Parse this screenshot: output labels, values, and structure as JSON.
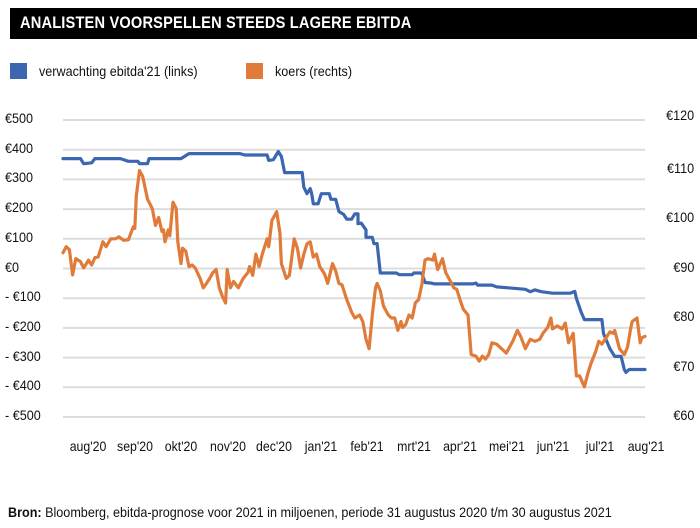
{
  "chart_data": {
    "type": "line",
    "title": "ANALISTEN VOORSPELLEN STEEDS LAGERE EBITDA",
    "source_label": "Bron:",
    "source_text": "Bloomberg, ebitda-prognose voor 2021 in miljoenen, periode 31 augustus 2020 t/m 30 augustus 2021",
    "x_unit": "days since 31 Aug 2020",
    "xlim": [
      0,
      365
    ],
    "x_tick_labels": [
      "aug'20",
      "sep'20",
      "okt'20",
      "nov'20",
      "dec'20",
      "jan'21",
      "feb'21",
      "mrt'21",
      "apr'21",
      "mei'21",
      "jun'21",
      "jul'21",
      "aug'21"
    ],
    "y_left": {
      "ylim": [
        -500,
        500
      ],
      "tick_labels": [
        "€500",
        "€400",
        "€300",
        "€200",
        "€100",
        "€0",
        "- €100",
        "- €200",
        "- €300",
        "- €400",
        "- €500"
      ]
    },
    "y_right": {
      "ylim": [
        60,
        120
      ],
      "tick_labels": [
        "€120",
        "€110",
        "€100",
        "€90",
        "€80",
        "€70",
        "€60"
      ]
    },
    "grid": true,
    "legend_placement": "top-left",
    "series": [
      {
        "name": "verwachting ebitda'21 (links)",
        "axis": "left",
        "color": "#3b67b0",
        "points": [
          [
            0,
            370
          ],
          [
            11,
            370
          ],
          [
            13,
            353
          ],
          [
            18,
            356
          ],
          [
            20,
            370
          ],
          [
            36,
            370
          ],
          [
            41,
            361
          ],
          [
            47,
            361
          ],
          [
            48,
            353
          ],
          [
            53,
            353
          ],
          [
            54,
            370
          ],
          [
            74,
            370
          ],
          [
            79,
            387
          ],
          [
            111,
            387
          ],
          [
            114,
            382
          ],
          [
            128,
            382
          ],
          [
            129,
            364
          ],
          [
            132,
            367
          ],
          [
            135,
            394
          ],
          [
            137,
            377
          ],
          [
            139,
            323
          ],
          [
            150,
            323
          ],
          [
            151,
            274
          ],
          [
            153,
            252
          ],
          [
            155,
            269
          ],
          [
            156,
            252
          ],
          [
            157,
            218
          ],
          [
            160,
            218
          ],
          [
            162,
            252
          ],
          [
            167,
            252
          ],
          [
            168,
            233
          ],
          [
            171,
            233
          ],
          [
            173,
            192
          ],
          [
            176,
            182
          ],
          [
            178,
            166
          ],
          [
            181,
            166
          ],
          [
            183,
            184
          ],
          [
            185,
            184
          ],
          [
            185,
            151
          ],
          [
            187,
            153
          ],
          [
            190,
            130
          ],
          [
            190,
            105
          ],
          [
            194,
            105
          ],
          [
            195,
            84
          ],
          [
            197,
            84
          ],
          [
            199,
            -15
          ],
          [
            209,
            -15
          ],
          [
            211,
            -21
          ],
          [
            219,
            -21
          ],
          [
            220,
            -15
          ],
          [
            225,
            -15
          ],
          [
            227,
            -47
          ],
          [
            231,
            -49
          ],
          [
            233,
            -52
          ],
          [
            257,
            -52
          ],
          [
            259,
            -49
          ],
          [
            260,
            -56
          ],
          [
            269,
            -56
          ],
          [
            272,
            -62
          ],
          [
            279,
            -65
          ],
          [
            290,
            -70
          ],
          [
            293,
            -78
          ],
          [
            296,
            -72
          ],
          [
            300,
            -78
          ],
          [
            307,
            -83
          ],
          [
            318,
            -83
          ],
          [
            321,
            -77
          ],
          [
            322,
            -101
          ],
          [
            325,
            -147
          ],
          [
            327,
            -172
          ],
          [
            338,
            -172
          ],
          [
            339,
            -219
          ],
          [
            343,
            -270
          ],
          [
            346,
            -296
          ],
          [
            350,
            -296
          ],
          [
            352,
            -340
          ],
          [
            353,
            -350
          ],
          [
            355,
            -340
          ],
          [
            365,
            -340
          ]
        ]
      },
      {
        "name": "koers (rechts)",
        "axis": "right",
        "color": "#e07b39",
        "points": [
          [
            0,
            93.2
          ],
          [
            2,
            94.4
          ],
          [
            4,
            93.8
          ],
          [
            6,
            88.7
          ],
          [
            8,
            92.0
          ],
          [
            11,
            91.4
          ],
          [
            13,
            90.1
          ],
          [
            16,
            91.7
          ],
          [
            18,
            90.7
          ],
          [
            20,
            92.2
          ],
          [
            22,
            92.3
          ],
          [
            25,
            95.4
          ],
          [
            27,
            94.4
          ],
          [
            30,
            96.0
          ],
          [
            33,
            96.0
          ],
          [
            35,
            96.4
          ],
          [
            38,
            95.7
          ],
          [
            41,
            95.8
          ],
          [
            44,
            98.4
          ],
          [
            45,
            98.1
          ],
          [
            46,
            104.6
          ],
          [
            48,
            109.8
          ],
          [
            50,
            108.6
          ],
          [
            53,
            104.0
          ],
          [
            56,
            102.1
          ],
          [
            58,
            98.7
          ],
          [
            60,
            100.3
          ],
          [
            62,
            97.5
          ],
          [
            63,
            97.8
          ],
          [
            64,
            95.4
          ],
          [
            66,
            97.8
          ],
          [
            67,
            96.6
          ],
          [
            69,
            103.4
          ],
          [
            71,
            102.1
          ],
          [
            72,
            95.4
          ],
          [
            74,
            91.0
          ],
          [
            75,
            94.1
          ],
          [
            77,
            93.5
          ],
          [
            79,
            90.4
          ],
          [
            81,
            90.7
          ],
          [
            83,
            90.1
          ],
          [
            86,
            88.0
          ],
          [
            88,
            86.1
          ],
          [
            90,
            87.0
          ],
          [
            92,
            88.0
          ],
          [
            94,
            89.2
          ],
          [
            96,
            89.8
          ],
          [
            98,
            86.1
          ],
          [
            100,
            84.3
          ],
          [
            102,
            83.0
          ],
          [
            103,
            89.8
          ],
          [
            105,
            86.1
          ],
          [
            107,
            87.4
          ],
          [
            110,
            86.1
          ],
          [
            113,
            88.0
          ],
          [
            116,
            89.2
          ],
          [
            117,
            90.4
          ],
          [
            119,
            88.6
          ],
          [
            121,
            92.9
          ],
          [
            123,
            90.4
          ],
          [
            125,
            92.9
          ],
          [
            128,
            96.0
          ],
          [
            129,
            94.4
          ],
          [
            131,
            99.7
          ],
          [
            134,
            101.5
          ],
          [
            136,
            97.2
          ],
          [
            137,
            91.0
          ],
          [
            140,
            88.0
          ],
          [
            142,
            88.6
          ],
          [
            145,
            96.0
          ],
          [
            147,
            94.1
          ],
          [
            149,
            90.1
          ],
          [
            151,
            92.9
          ],
          [
            153,
            95.0
          ],
          [
            155,
            95.4
          ],
          [
            157,
            92.3
          ],
          [
            159,
            92.9
          ],
          [
            161,
            90.4
          ],
          [
            164,
            88.9
          ],
          [
            166,
            87.0
          ],
          [
            169,
            91.0
          ],
          [
            171,
            89.5
          ],
          [
            173,
            87.0
          ],
          [
            175,
            86.7
          ],
          [
            178,
            83.7
          ],
          [
            181,
            81.2
          ],
          [
            183,
            80.0
          ],
          [
            186,
            80.6
          ],
          [
            188,
            79.3
          ],
          [
            190,
            75.7
          ],
          [
            192,
            73.8
          ],
          [
            194,
            80.6
          ],
          [
            196,
            86.1
          ],
          [
            197,
            87.0
          ],
          [
            199,
            85.5
          ],
          [
            201,
            82.4
          ],
          [
            204,
            80.6
          ],
          [
            206,
            80.0
          ],
          [
            208,
            80.0
          ],
          [
            210,
            77.5
          ],
          [
            212,
            79.3
          ],
          [
            213,
            78.1
          ],
          [
            215,
            78.7
          ],
          [
            217,
            80.6
          ],
          [
            219,
            80.0
          ],
          [
            221,
            83.1
          ],
          [
            223,
            83.7
          ],
          [
            225,
            86.7
          ],
          [
            227,
            91.7
          ],
          [
            229,
            92.0
          ],
          [
            232,
            91.7
          ],
          [
            233,
            92.9
          ],
          [
            235,
            89.8
          ],
          [
            238,
            92.0
          ],
          [
            240,
            89.2
          ],
          [
            243,
            87.4
          ],
          [
            245,
            86.1
          ],
          [
            247,
            85.8
          ],
          [
            249,
            83.7
          ],
          [
            251,
            81.8
          ],
          [
            254,
            80.6
          ],
          [
            256,
            72.6
          ],
          [
            259,
            72.3
          ],
          [
            261,
            71.3
          ],
          [
            263,
            72.3
          ],
          [
            265,
            71.7
          ],
          [
            267,
            72.6
          ],
          [
            269,
            75.0
          ],
          [
            272,
            74.7
          ],
          [
            275,
            73.8
          ],
          [
            278,
            72.9
          ],
          [
            280,
            74.1
          ],
          [
            282,
            75.3
          ],
          [
            285,
            77.5
          ],
          [
            287,
            76.3
          ],
          [
            290,
            73.8
          ],
          [
            293,
            75.7
          ],
          [
            296,
            75.3
          ],
          [
            299,
            75.7
          ],
          [
            301,
            76.9
          ],
          [
            304,
            78.1
          ],
          [
            306,
            80.0
          ],
          [
            307,
            77.8
          ],
          [
            310,
            78.4
          ],
          [
            313,
            77.8
          ],
          [
            315,
            79.0
          ],
          [
            317,
            75.0
          ],
          [
            320,
            76.9
          ],
          [
            322,
            68.3
          ],
          [
            324,
            68.3
          ],
          [
            327,
            66.1
          ],
          [
            329,
            68.6
          ],
          [
            331,
            70.7
          ],
          [
            334,
            73.2
          ],
          [
            336,
            75.3
          ],
          [
            338,
            74.7
          ],
          [
            340,
            75.7
          ],
          [
            343,
            77.2
          ],
          [
            345,
            76.9
          ],
          [
            346,
            77.5
          ],
          [
            349,
            73.8
          ],
          [
            352,
            72.6
          ],
          [
            354,
            74.1
          ],
          [
            356,
            77.8
          ],
          [
            357,
            79.3
          ],
          [
            360,
            80.0
          ],
          [
            362,
            75.0
          ],
          [
            363,
            76.0
          ],
          [
            365,
            76.3
          ]
        ]
      }
    ]
  }
}
